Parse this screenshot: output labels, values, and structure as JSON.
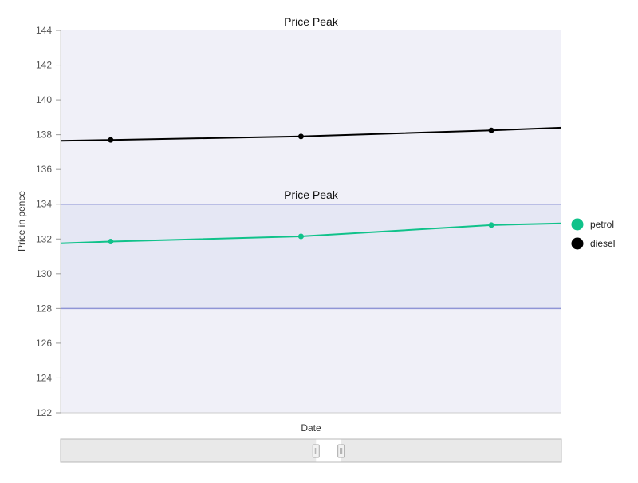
{
  "chart_data": {
    "type": "line",
    "title": "Price Peak",
    "xlabel": "Date",
    "ylabel": "Price in pence",
    "ylim": [
      122,
      144
    ],
    "yticks": [
      122,
      124,
      126,
      128,
      130,
      132,
      134,
      136,
      138,
      140,
      142,
      144
    ],
    "x_domain": [
      0,
      1
    ],
    "x": [
      0.1,
      0.48,
      0.86
    ],
    "line_extent": [
      0,
      1
    ],
    "series": [
      {
        "name": "petrol",
        "color": "#10c28a",
        "values": [
          131.85,
          132.15,
          132.8
        ],
        "start_value": 131.75,
        "end_value": 132.9
      },
      {
        "name": "diesel",
        "color": "#000000",
        "values": [
          137.7,
          137.9,
          138.25
        ],
        "start_value": 137.65,
        "end_value": 138.4
      }
    ],
    "plot_band": {
      "label": "Price Peak",
      "from": 128,
      "to": 134,
      "color": "#e5e7f4",
      "line_color": "#8f95d6"
    },
    "plot_background": "#f0f0f8",
    "legend": {
      "position": "right"
    },
    "grid": false,
    "navigator": {
      "visible": true,
      "window": [
        0.51,
        0.56
      ]
    }
  }
}
